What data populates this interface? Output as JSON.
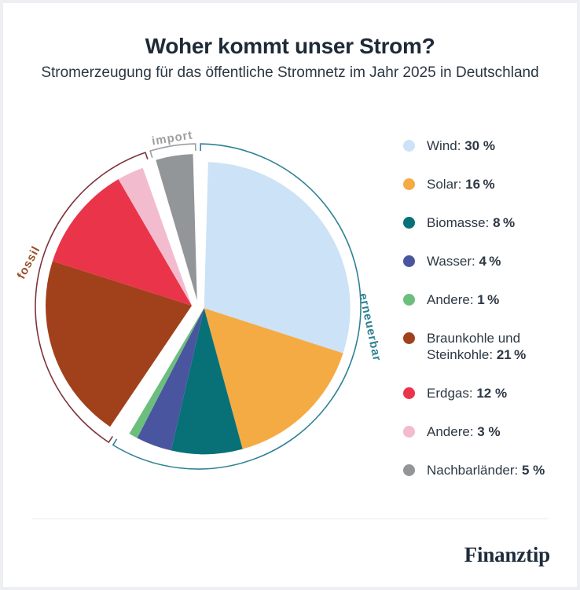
{
  "page": {
    "title": "Woher kommt unser Strom?",
    "subtitle": "Stromerzeugung für das öffentliche Stromnetz im Jahr 2025 in Deutschland",
    "brand": "Finanztip"
  },
  "chart_data": {
    "type": "pie",
    "title": "Woher kommt unser Strom?",
    "subtitle": "Stromerzeugung für das öffentliche Stromnetz im Jahr 2025 in Deutschland",
    "unit": "%",
    "start_angle_deg": 0,
    "direction": "clockwise",
    "legend_position": "right",
    "groups": [
      {
        "id": "erneuerbar",
        "label": "erneuerbar",
        "color": "#2E8294",
        "label_color": "#2E8294",
        "total": 59
      },
      {
        "id": "fossil",
        "label": "fossil",
        "color": "#7E333C",
        "label_color": "#9B4E28",
        "total": 36
      },
      {
        "id": "import",
        "label": "import",
        "color": "#9C9EA0",
        "label_color": "#9C9EA0",
        "total": 5
      }
    ],
    "slices": [
      {
        "name": "Wind",
        "value": 30,
        "display": "30 %",
        "color": "#CCE2F6",
        "group": "erneuerbar"
      },
      {
        "name": "Solar",
        "value": 16,
        "display": "16 %",
        "color": "#F5AB43",
        "group": "erneuerbar"
      },
      {
        "name": "Biomasse",
        "value": 8,
        "display": "8 %",
        "color": "#087178",
        "group": "erneuerbar"
      },
      {
        "name": "Wasser",
        "value": 4,
        "display": "4 %",
        "color": "#4A55A0",
        "group": "erneuerbar"
      },
      {
        "name": "Andere",
        "value": 1,
        "display": "1 %",
        "color": "#6CBE7D",
        "group": "erneuerbar"
      },
      {
        "name": "Braunkohle und Steinkohle",
        "value": 21,
        "display": "21 %",
        "color": "#A1411B",
        "group": "fossil"
      },
      {
        "name": "Erdgas",
        "value": 12,
        "display": "12 %",
        "color": "#EA3449",
        "group": "fossil"
      },
      {
        "name": "Andere",
        "value": 3,
        "display": "3 %",
        "color": "#F2BCCE",
        "group": "fossil"
      },
      {
        "name": "Nachbarländer",
        "value": 5,
        "display": "5 %",
        "color": "#939699",
        "group": "import"
      }
    ]
  }
}
